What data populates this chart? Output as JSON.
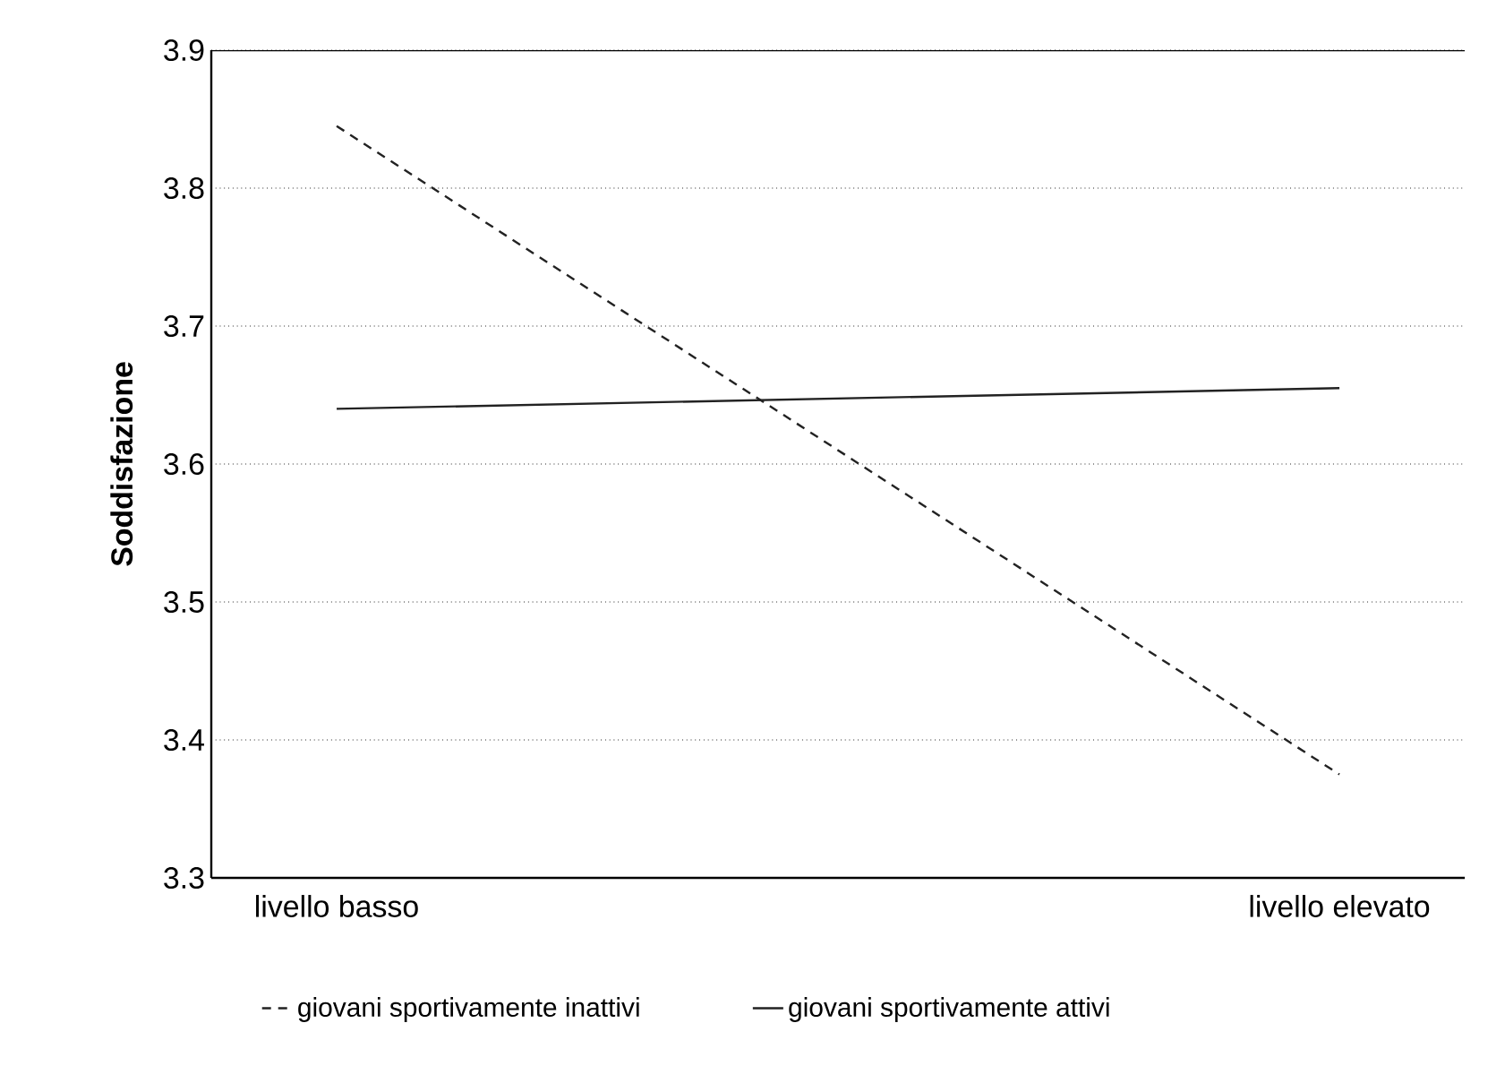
{
  "chart_data": {
    "type": "line",
    "ylabel": "Soddisfazione",
    "categories": [
      "livello basso",
      "livello elevato"
    ],
    "series": [
      {
        "name": "giovani sportivamente inattivi",
        "color": "#222222",
        "line_style": "dashed",
        "values": [
          3.845,
          3.375
        ]
      },
      {
        "name": "giovani sportivamente attivi",
        "color": "#222222",
        "line_style": "solid",
        "values": [
          3.64,
          3.655
        ]
      }
    ],
    "ylim": [
      3.3,
      3.9
    ],
    "yticks": [
      3.3,
      3.4,
      3.5,
      3.6,
      3.7,
      3.8,
      3.9
    ],
    "grid": "y",
    "legend": "bottom",
    "marker": "none"
  }
}
